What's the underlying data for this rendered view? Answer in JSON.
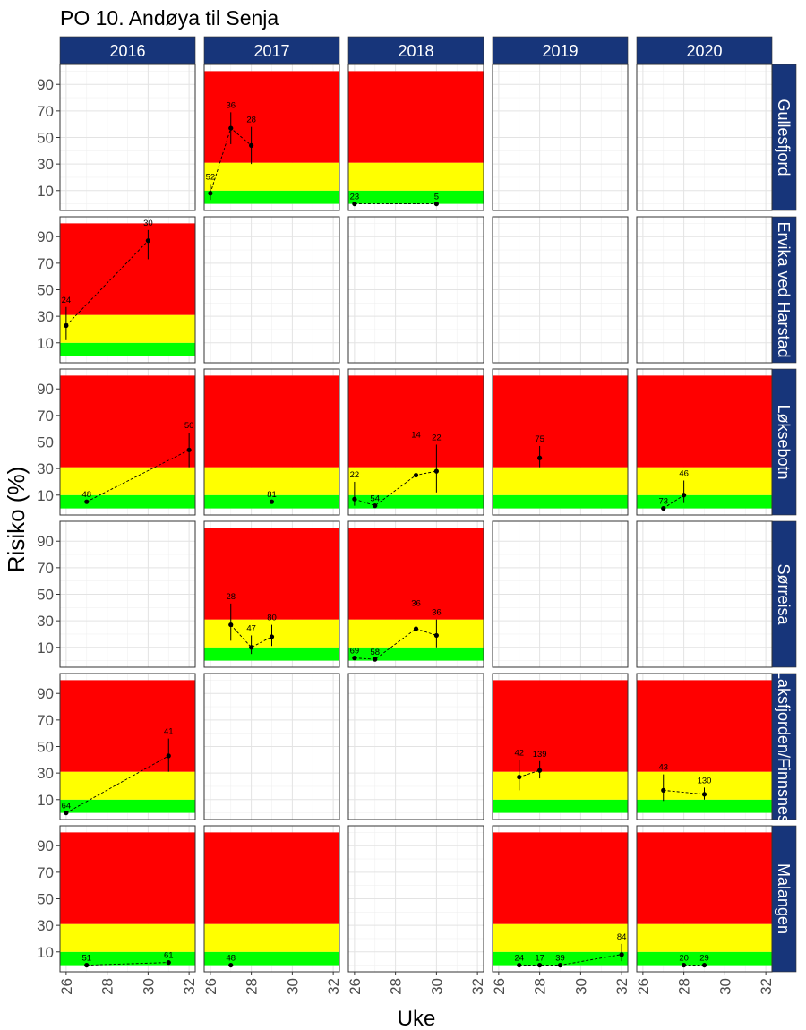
{
  "chart_data": {
    "type": "faceted-point-range",
    "title": "PO 10. Andøya til Senja",
    "xlabel": "Uke",
    "ylabel": "Risiko (%)",
    "xlim": [
      25.7,
      32.3
    ],
    "ylim": [
      -5,
      105
    ],
    "xticks": [
      "26",
      "28",
      "30",
      "32"
    ],
    "yticks": [
      "10",
      "30",
      "50",
      "70",
      "90"
    ],
    "years": [
      "2016",
      "2017",
      "2018",
      "2019",
      "2020"
    ],
    "locations": [
      "Gullesfjord",
      "Ervika ved Harstad",
      "Løksebotn",
      "Sørreisa",
      "Laksfjorden/Finnsnes",
      "Malangen"
    ],
    "risk_bands": [
      {
        "name": "low",
        "from": 0,
        "to": 10,
        "color": "#00ff00"
      },
      {
        "name": "medium",
        "from": 10,
        "to": 31,
        "color": "#ffff00"
      },
      {
        "name": "high",
        "from": 31,
        "to": 100,
        "color": "#ff0000"
      }
    ],
    "panels": [
      {
        "row": 0,
        "col": 1,
        "bands": true,
        "points": [
          {
            "x": 26,
            "y": 8,
            "lo": 3,
            "hi": 15,
            "n": "52"
          },
          {
            "x": 27,
            "y": 57,
            "lo": 45,
            "hi": 69,
            "n": "36"
          },
          {
            "x": 28,
            "y": 44,
            "lo": 30,
            "hi": 58,
            "n": "28"
          }
        ]
      },
      {
        "row": 0,
        "col": 2,
        "bands": true,
        "points": [
          {
            "x": 26,
            "y": 0,
            "n": "23"
          },
          {
            "x": 30,
            "y": 0,
            "n": "5"
          }
        ]
      },
      {
        "row": 1,
        "col": 0,
        "bands": true,
        "points": [
          {
            "x": 26,
            "y": 23,
            "lo": 12,
            "hi": 37,
            "n": "24"
          },
          {
            "x": 30,
            "y": 87,
            "lo": 73,
            "hi": 95,
            "n": "30"
          }
        ]
      },
      {
        "row": 2,
        "col": 0,
        "bands": true,
        "points": [
          {
            "x": 27,
            "y": 5,
            "n": "48"
          },
          {
            "x": 32,
            "y": 44,
            "lo": 31,
            "hi": 57,
            "n": "50"
          }
        ]
      },
      {
        "row": 2,
        "col": 1,
        "bands": true,
        "points": [
          {
            "x": 29,
            "y": 5,
            "n": "81"
          }
        ]
      },
      {
        "row": 2,
        "col": 2,
        "bands": true,
        "points": [
          {
            "x": 26,
            "y": 7,
            "lo": 2,
            "hi": 20,
            "n": "22"
          },
          {
            "x": 27,
            "y": 2,
            "n": "54"
          },
          {
            "x": 29,
            "y": 25,
            "lo": 8,
            "hi": 50,
            "n": "14"
          },
          {
            "x": 30,
            "y": 28,
            "lo": 12,
            "hi": 48,
            "n": "22"
          }
        ]
      },
      {
        "row": 2,
        "col": 3,
        "bands": true,
        "points": [
          {
            "x": 28,
            "y": 38,
            "lo": 31,
            "hi": 47,
            "n": "75"
          }
        ]
      },
      {
        "row": 2,
        "col": 4,
        "bands": true,
        "points": [
          {
            "x": 27,
            "y": 0,
            "n": "73"
          },
          {
            "x": 28,
            "y": 10,
            "lo": 4,
            "hi": 21,
            "n": "46"
          }
        ]
      },
      {
        "row": 3,
        "col": 1,
        "bands": true,
        "points": [
          {
            "x": 27,
            "y": 27,
            "lo": 15,
            "hi": 43,
            "n": "28"
          },
          {
            "x": 28,
            "y": 10,
            "lo": 5,
            "hi": 19,
            "n": "47"
          },
          {
            "x": 29,
            "y": 18,
            "lo": 11,
            "hi": 27,
            "n": "80"
          }
        ]
      },
      {
        "row": 3,
        "col": 2,
        "bands": true,
        "points": [
          {
            "x": 26,
            "y": 2,
            "n": "69"
          },
          {
            "x": 27,
            "y": 1,
            "n": "58"
          },
          {
            "x": 29,
            "y": 24,
            "lo": 14,
            "hi": 38,
            "n": "36"
          },
          {
            "x": 30,
            "y": 19,
            "lo": 10,
            "hi": 31,
            "n": "36"
          }
        ]
      },
      {
        "row": 4,
        "col": 0,
        "bands": true,
        "points": [
          {
            "x": 26,
            "y": 0,
            "n": "64"
          },
          {
            "x": 31,
            "y": 43,
            "lo": 31,
            "hi": 56,
            "n": "41"
          }
        ]
      },
      {
        "row": 4,
        "col": 3,
        "bands": true,
        "points": [
          {
            "x": 27,
            "y": 27,
            "lo": 17,
            "hi": 40,
            "n": "42"
          },
          {
            "x": 28,
            "y": 32,
            "lo": 26,
            "hi": 39,
            "n": "139"
          }
        ]
      },
      {
        "row": 4,
        "col": 4,
        "bands": true,
        "points": [
          {
            "x": 27,
            "y": 17,
            "lo": 9,
            "hi": 29,
            "n": "43"
          },
          {
            "x": 29,
            "y": 14,
            "lo": 10,
            "hi": 19,
            "n": "130"
          }
        ]
      },
      {
        "row": 5,
        "col": 0,
        "bands": true,
        "points": [
          {
            "x": 27,
            "y": 0,
            "n": "51"
          },
          {
            "x": 31,
            "y": 2,
            "n": "61"
          }
        ]
      },
      {
        "row": 5,
        "col": 1,
        "bands": true,
        "points": [
          {
            "x": 27,
            "y": 0,
            "n": "48"
          }
        ]
      },
      {
        "row": 5,
        "col": 3,
        "bands": true,
        "points": [
          {
            "x": 27,
            "y": 0,
            "n": "24"
          },
          {
            "x": 28,
            "y": 0,
            "n": "17"
          },
          {
            "x": 29,
            "y": 0,
            "n": "39"
          },
          {
            "x": 32,
            "y": 8,
            "lo": 3,
            "hi": 16,
            "n": "84"
          }
        ]
      },
      {
        "row": 5,
        "col": 4,
        "bands": true,
        "points": [
          {
            "x": 28,
            "y": 0,
            "n": "20"
          },
          {
            "x": 29,
            "y": 0,
            "n": "29"
          }
        ]
      }
    ]
  }
}
